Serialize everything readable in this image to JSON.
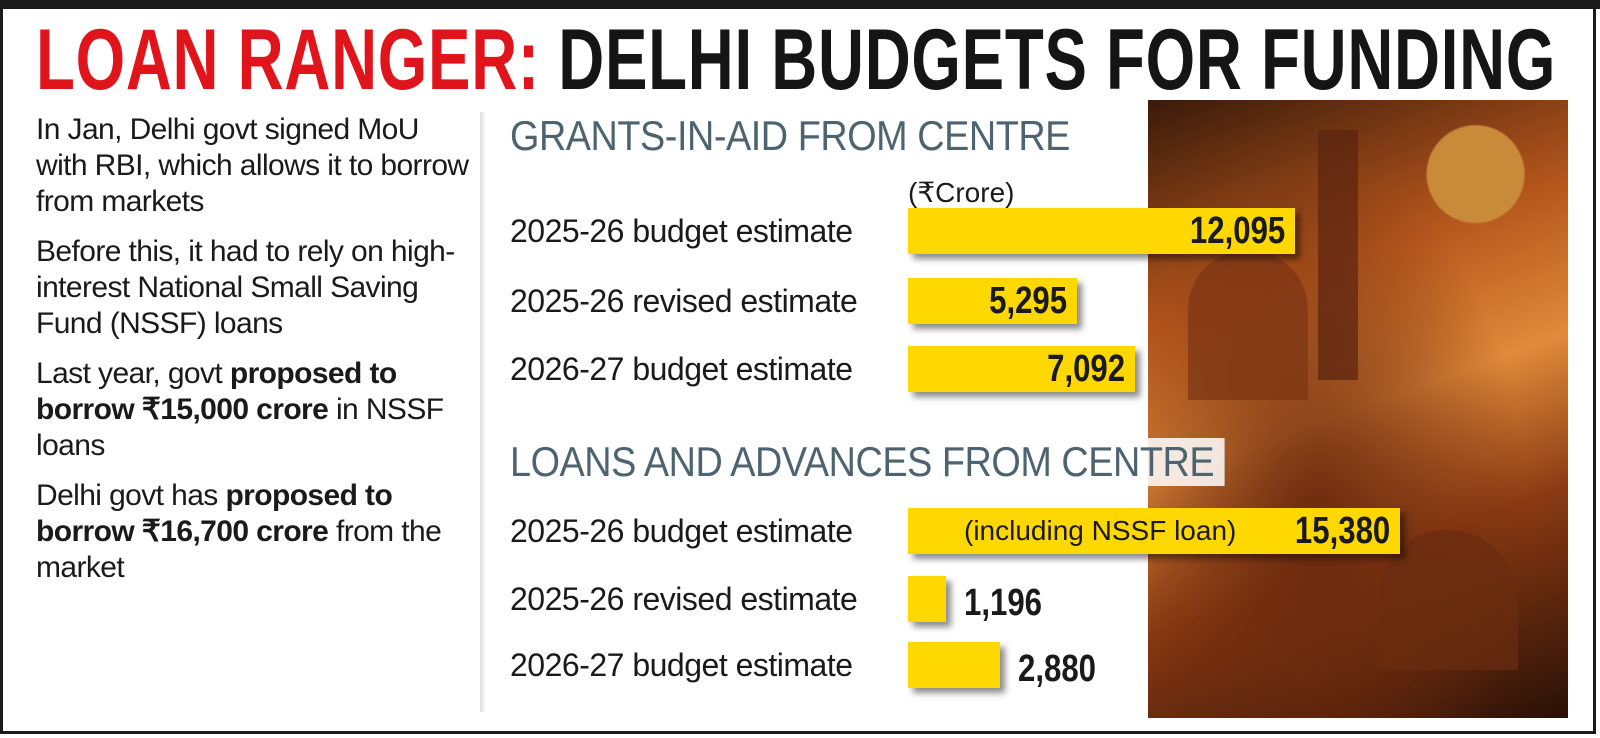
{
  "title": {
    "red": "LOAN RANGER:",
    "black": "DELHI BUDGETS FOR FUNDING"
  },
  "left_notes": [
    {
      "parts": [
        {
          "t": "In Jan, Delhi govt signed MoU with RBI, which allows it to borrow from markets",
          "b": false
        }
      ]
    },
    {
      "parts": [
        {
          "t": "Before this, it had to rely on high-interest National Small Saving Fund (NSSF) loans",
          "b": false
        }
      ]
    },
    {
      "parts": [
        {
          "t": "Last year, govt ",
          "b": false
        },
        {
          "t": "proposed to borrow ₹15,000 crore",
          "b": true
        },
        {
          "t": " in NSSF loans",
          "b": false
        }
      ]
    },
    {
      "parts": [
        {
          "t": "Delhi govt has ",
          "b": false
        },
        {
          "t": "proposed to borrow ₹16,700 crore",
          "b": true
        },
        {
          "t": " from the market",
          "b": false
        }
      ]
    }
  ],
  "colors": {
    "bar": "#fed800",
    "heading": "#4d6470",
    "title_red": "#e0141b"
  },
  "chart_data": [
    {
      "type": "bar",
      "orientation": "horizontal",
      "title": "GRANTS-IN-AID FROM CENTRE",
      "unit": "(₹Crore)",
      "categories": [
        "2025-26 budget estimate",
        "2025-26 revised estimate",
        "2026-27 budget estimate"
      ],
      "values": [
        12095,
        5295,
        7092
      ],
      "value_labels": [
        "12,095",
        "5,295",
        "7,092"
      ],
      "notes": [
        "",
        "",
        ""
      ]
    },
    {
      "type": "bar",
      "orientation": "horizontal",
      "title": "LOANS AND ADVANCES FROM CENTRE",
      "categories": [
        "2025-26 budget estimate",
        "2025-26 revised estimate",
        "2026-27 budget estimate"
      ],
      "values": [
        15380,
        1196,
        2880
      ],
      "value_labels": [
        "15,380",
        "1,196",
        "2,880"
      ],
      "notes": [
        "(including NSSF loan)",
        "",
        ""
      ]
    }
  ]
}
